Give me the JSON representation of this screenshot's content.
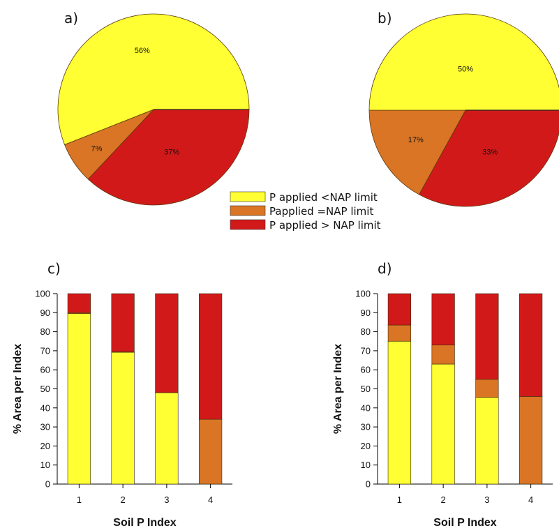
{
  "colors": {
    "yellow": "#ffff33",
    "orange": "#d97524",
    "red": "#d2191a"
  },
  "legend": [
    {
      "label": "P applied <NAP limit",
      "color": "#ffff33"
    },
    {
      "label": "Papplied =NAP limit",
      "color": "#d97524"
    },
    {
      "label": "P applied > NAP limit",
      "color": "#d2191a"
    }
  ],
  "chart_data": [
    {
      "type": "pie",
      "panel": "a)",
      "slices": [
        {
          "label": "56%",
          "value": 56,
          "color": "#ffff33"
        },
        {
          "label": "7%",
          "value": 7,
          "color": "#d97524"
        },
        {
          "label": "37%",
          "value": 37,
          "color": "#d2191a"
        }
      ]
    },
    {
      "type": "pie",
      "panel": "b)",
      "slices": [
        {
          "label": "50%",
          "value": 50,
          "color": "#ffff33"
        },
        {
          "label": "17%",
          "value": 17,
          "color": "#d97524"
        },
        {
          "label": "33%",
          "value": 33,
          "color": "#d2191a"
        }
      ]
    },
    {
      "type": "bar",
      "stacked": true,
      "panel": "c)",
      "categories": [
        "1",
        "2",
        "3",
        "4"
      ],
      "series": [
        {
          "name": "P applied <NAP limit",
          "color": "#ffff33",
          "values": [
            89.5,
            69.2,
            48,
            0
          ]
        },
        {
          "name": "Papplied =NAP limit",
          "color": "#d97524",
          "values": [
            0.5,
            0.3,
            0,
            34
          ]
        },
        {
          "name": "P applied > NAP limit",
          "color": "#d2191a",
          "values": [
            10,
            30.5,
            52,
            66
          ]
        }
      ],
      "xlabel": "Soil P Index",
      "ylabel": "% Area per Index",
      "ylim": [
        0,
        100
      ],
      "yticks": [
        "0",
        "10",
        "20",
        "30",
        "40",
        "50",
        "60",
        "70",
        "80",
        "90",
        "100"
      ]
    },
    {
      "type": "bar",
      "stacked": true,
      "panel": "d)",
      "categories": [
        "1",
        "2",
        "3",
        "4"
      ],
      "series": [
        {
          "name": "P applied <NAP limit",
          "color": "#ffff33",
          "values": [
            75,
            63,
            45.5,
            0
          ]
        },
        {
          "name": "Papplied =NAP limit",
          "color": "#d97524",
          "values": [
            8.5,
            10,
            9.5,
            46
          ]
        },
        {
          "name": "P applied > NAP limit",
          "color": "#d2191a",
          "values": [
            16.5,
            27,
            45,
            54
          ]
        }
      ],
      "xlabel": "Soil P Index",
      "ylabel": "% Area per Index",
      "ylim": [
        0,
        100
      ],
      "yticks": [
        "0",
        "10",
        "20",
        "30",
        "40",
        "50",
        "60",
        "70",
        "80",
        "90",
        "100"
      ]
    }
  ]
}
